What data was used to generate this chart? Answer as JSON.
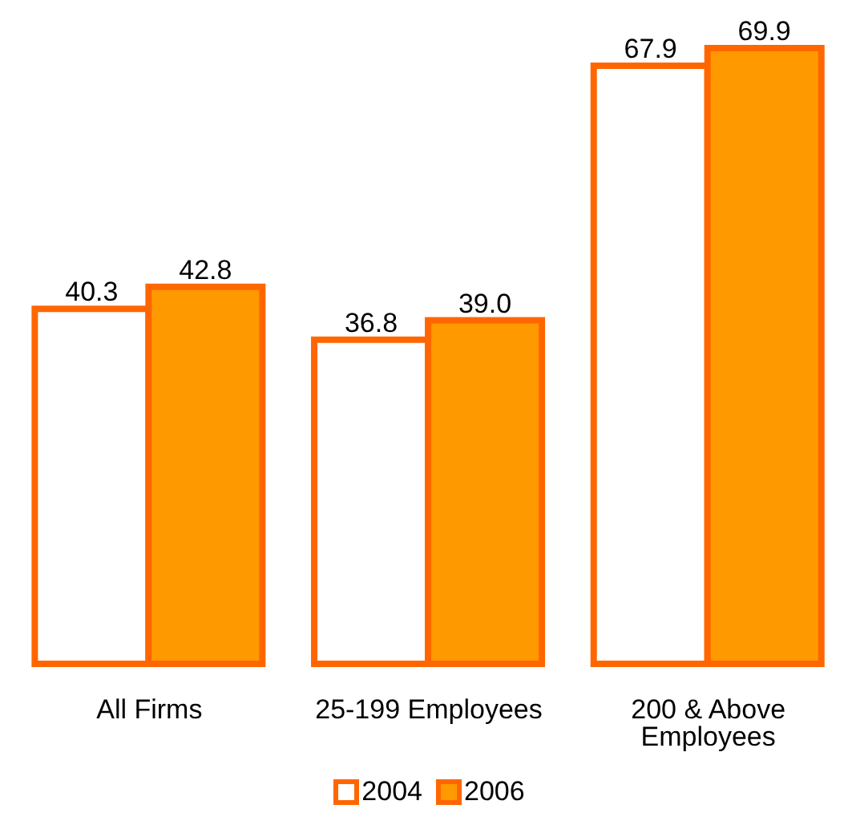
{
  "chart_data": {
    "type": "bar",
    "categories": [
      "All Firms",
      "25-199 Employees",
      "200 & Above Employees"
    ],
    "series": [
      {
        "name": "2004",
        "color": "#ffffff",
        "values": [
          40.3,
          36.8,
          67.9
        ],
        "value_labels": [
          "40.3",
          "36.8",
          "67.9"
        ]
      },
      {
        "name": "2006",
        "color": "#ff9900",
        "values": [
          42.8,
          39.0,
          69.9
        ],
        "value_labels": [
          "42.8",
          "39.0",
          "69.9"
        ]
      }
    ],
    "legend": "bottom"
  }
}
